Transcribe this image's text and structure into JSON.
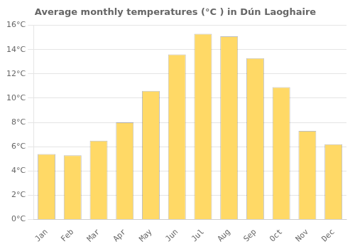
{
  "chart_data": {
    "type": "bar",
    "title": "Average monthly temperatures (°C ) in Dún Laoghaire",
    "categories": [
      "Jan",
      "Feb",
      "Mar",
      "Apr",
      "May",
      "Jun",
      "Jul",
      "Aug",
      "Sep",
      "Oct",
      "Nov",
      "Dec"
    ],
    "values": [
      5.4,
      5.3,
      6.5,
      8.0,
      10.6,
      13.6,
      15.3,
      15.1,
      13.3,
      10.9,
      7.3,
      6.2
    ],
    "color": "#FFD966",
    "ylim": [
      0,
      16
    ],
    "yticks": [
      {
        "value": 0,
        "label": "0°C"
      },
      {
        "value": 2,
        "label": "2°C"
      },
      {
        "value": 4,
        "label": "4°C"
      },
      {
        "value": 6,
        "label": "6°C"
      },
      {
        "value": 8,
        "label": "8°C"
      },
      {
        "value": 10,
        "label": "10°C"
      },
      {
        "value": 12,
        "label": "12°C"
      },
      {
        "value": 14,
        "label": "14°C"
      },
      {
        "value": 16,
        "label": "16°C"
      }
    ],
    "grid": true
  }
}
